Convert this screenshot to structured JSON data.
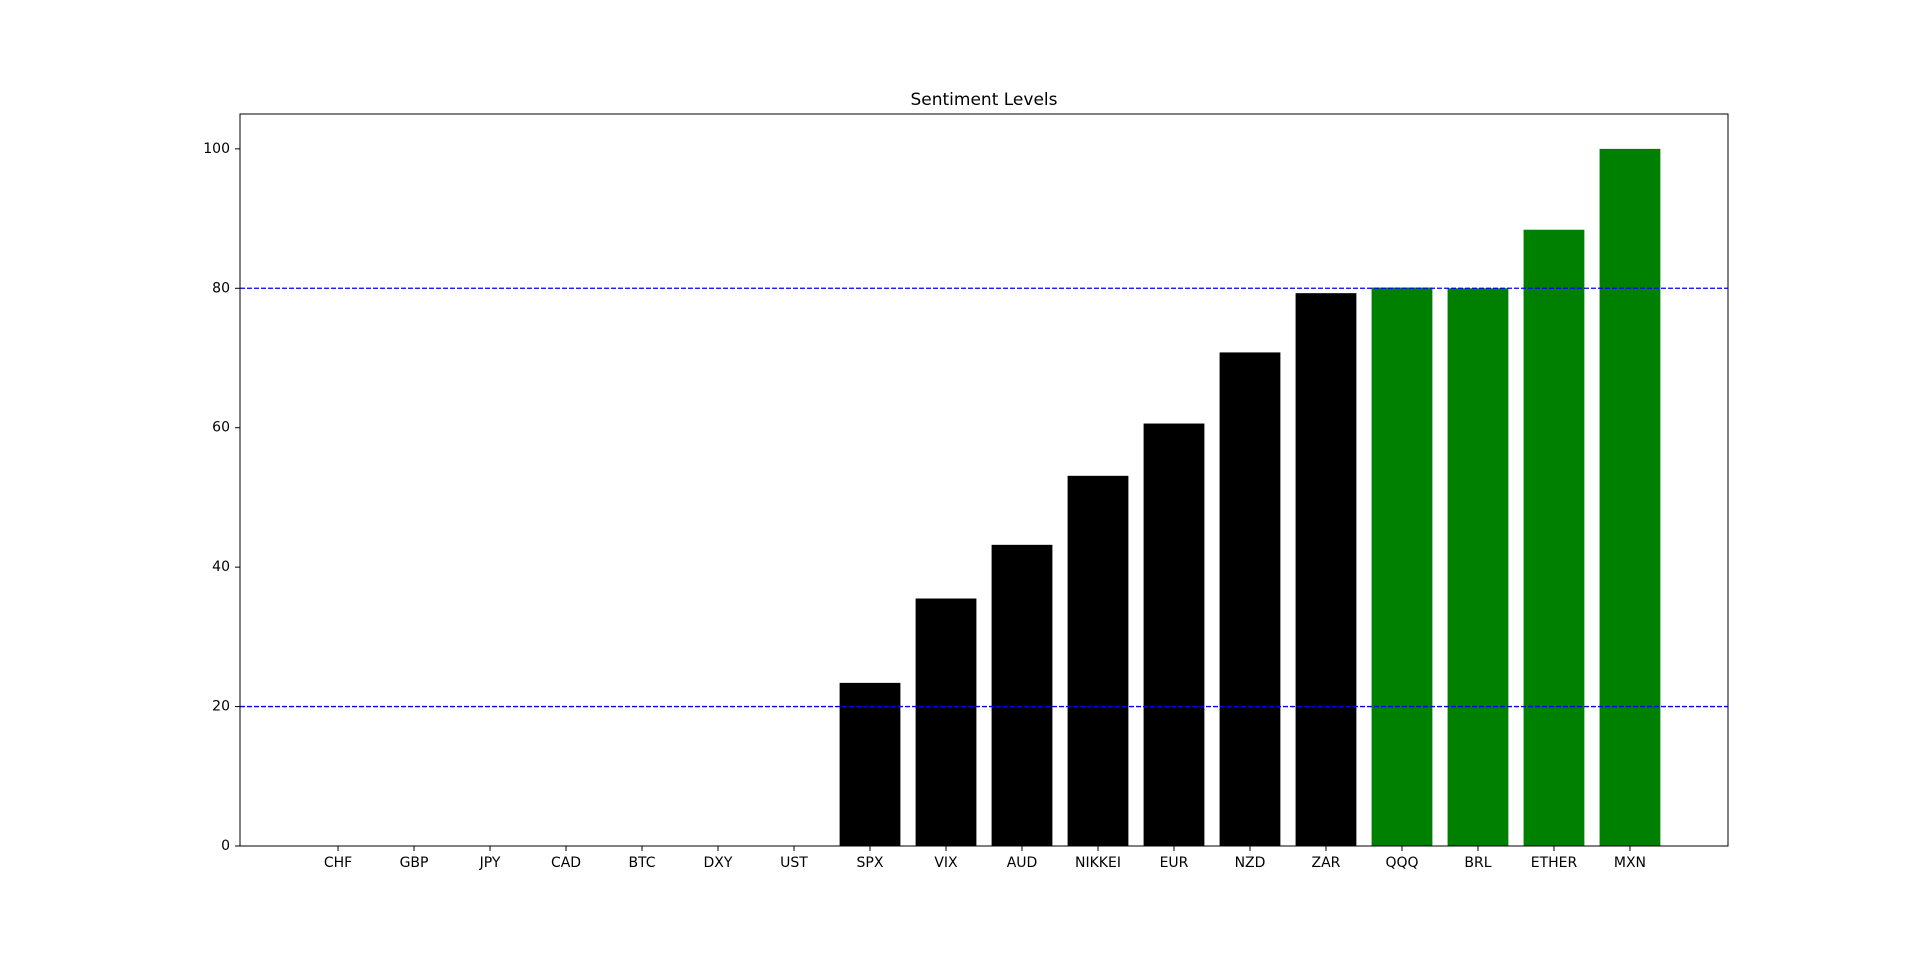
{
  "chart_data": {
    "type": "bar",
    "title": "Sentiment Levels",
    "categories": [
      "CHF",
      "GBP",
      "JPY",
      "CAD",
      "BTC",
      "DXY",
      "UST",
      "SPX",
      "VIX",
      "AUD",
      "NIKKEI",
      "EUR",
      "NZD",
      "ZAR",
      "QQQ",
      "BRL",
      "ETHER",
      "MXN"
    ],
    "values": [
      0,
      0,
      0,
      0,
      0,
      0,
      0,
      23.4,
      35.5,
      43.2,
      53.1,
      60.6,
      70.8,
      79.3,
      80.1,
      80.0,
      88.4,
      100
    ],
    "colors": [
      "#000000",
      "#000000",
      "#000000",
      "#000000",
      "#000000",
      "#000000",
      "#000000",
      "#000000",
      "#000000",
      "#000000",
      "#000000",
      "#000000",
      "#000000",
      "#000000",
      "#008000",
      "#008000",
      "#008000",
      "#008000"
    ],
    "ylim": [
      0,
      105
    ],
    "yticks": [
      0,
      20,
      40,
      60,
      80,
      100
    ],
    "reference_lines": [
      20,
      80
    ],
    "reference_line_color": "#0000ff",
    "grid": false
  }
}
